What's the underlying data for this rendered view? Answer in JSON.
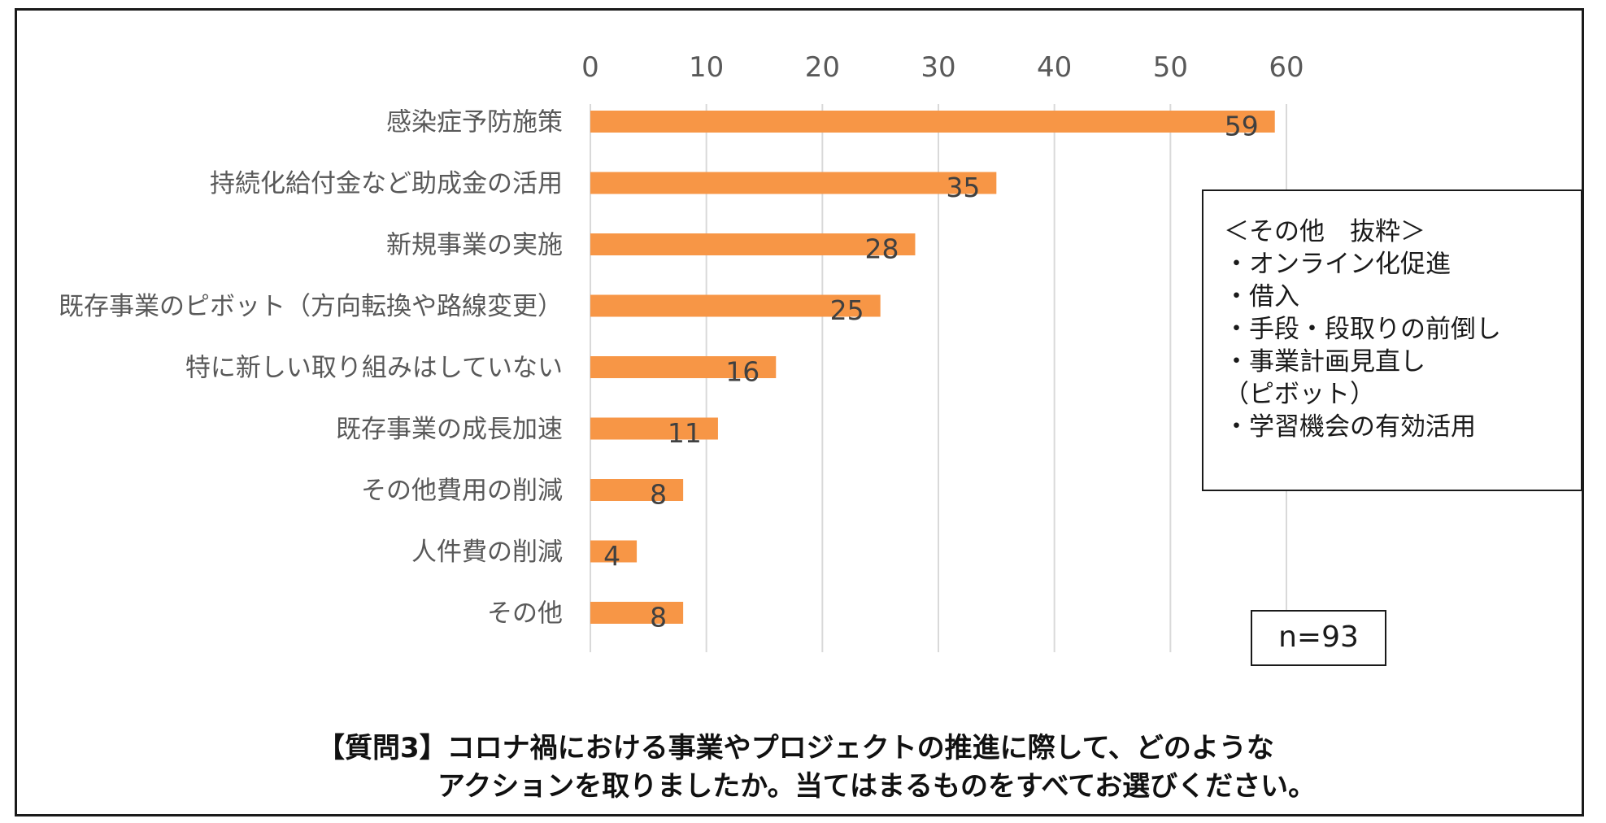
{
  "chart_data": {
    "type": "bar",
    "orientation": "horizontal",
    "categories": [
      "感染症予防施策",
      "持続化給付金など助成金の活用",
      "新規事業の実施",
      "既存事業のピボット（方向転換や路線変更）",
      "特に新しい取り組みはしていない",
      "既存事業の成長加速",
      "その他費用の削減",
      "人件費の削減",
      "その他"
    ],
    "values": [
      59,
      35,
      28,
      25,
      16,
      11,
      8,
      4,
      8
    ],
    "xlim": [
      0,
      60
    ],
    "xticks": [
      0,
      10,
      20,
      30,
      40,
      50,
      60
    ],
    "xaxis_position": "top",
    "grid": true,
    "bar_color": "#f79646",
    "grid_color": "#d9d9d9",
    "title": ""
  },
  "note_box": {
    "title": "＜その他　抜粋＞",
    "items": [
      "・オンライン化促進",
      "・借入",
      "・手段・段取りの前倒し",
      "・事業計画見直し",
      "（ピボット）",
      "・学習機会の有効活用"
    ]
  },
  "sample_size": "n=93",
  "question": {
    "line1": "【質問3】コロナ禍における事業やプロジェクトの推進に際して、どのような",
    "line2": "アクションを取りましたか。当てはまるものをすべてお選びください。"
  }
}
